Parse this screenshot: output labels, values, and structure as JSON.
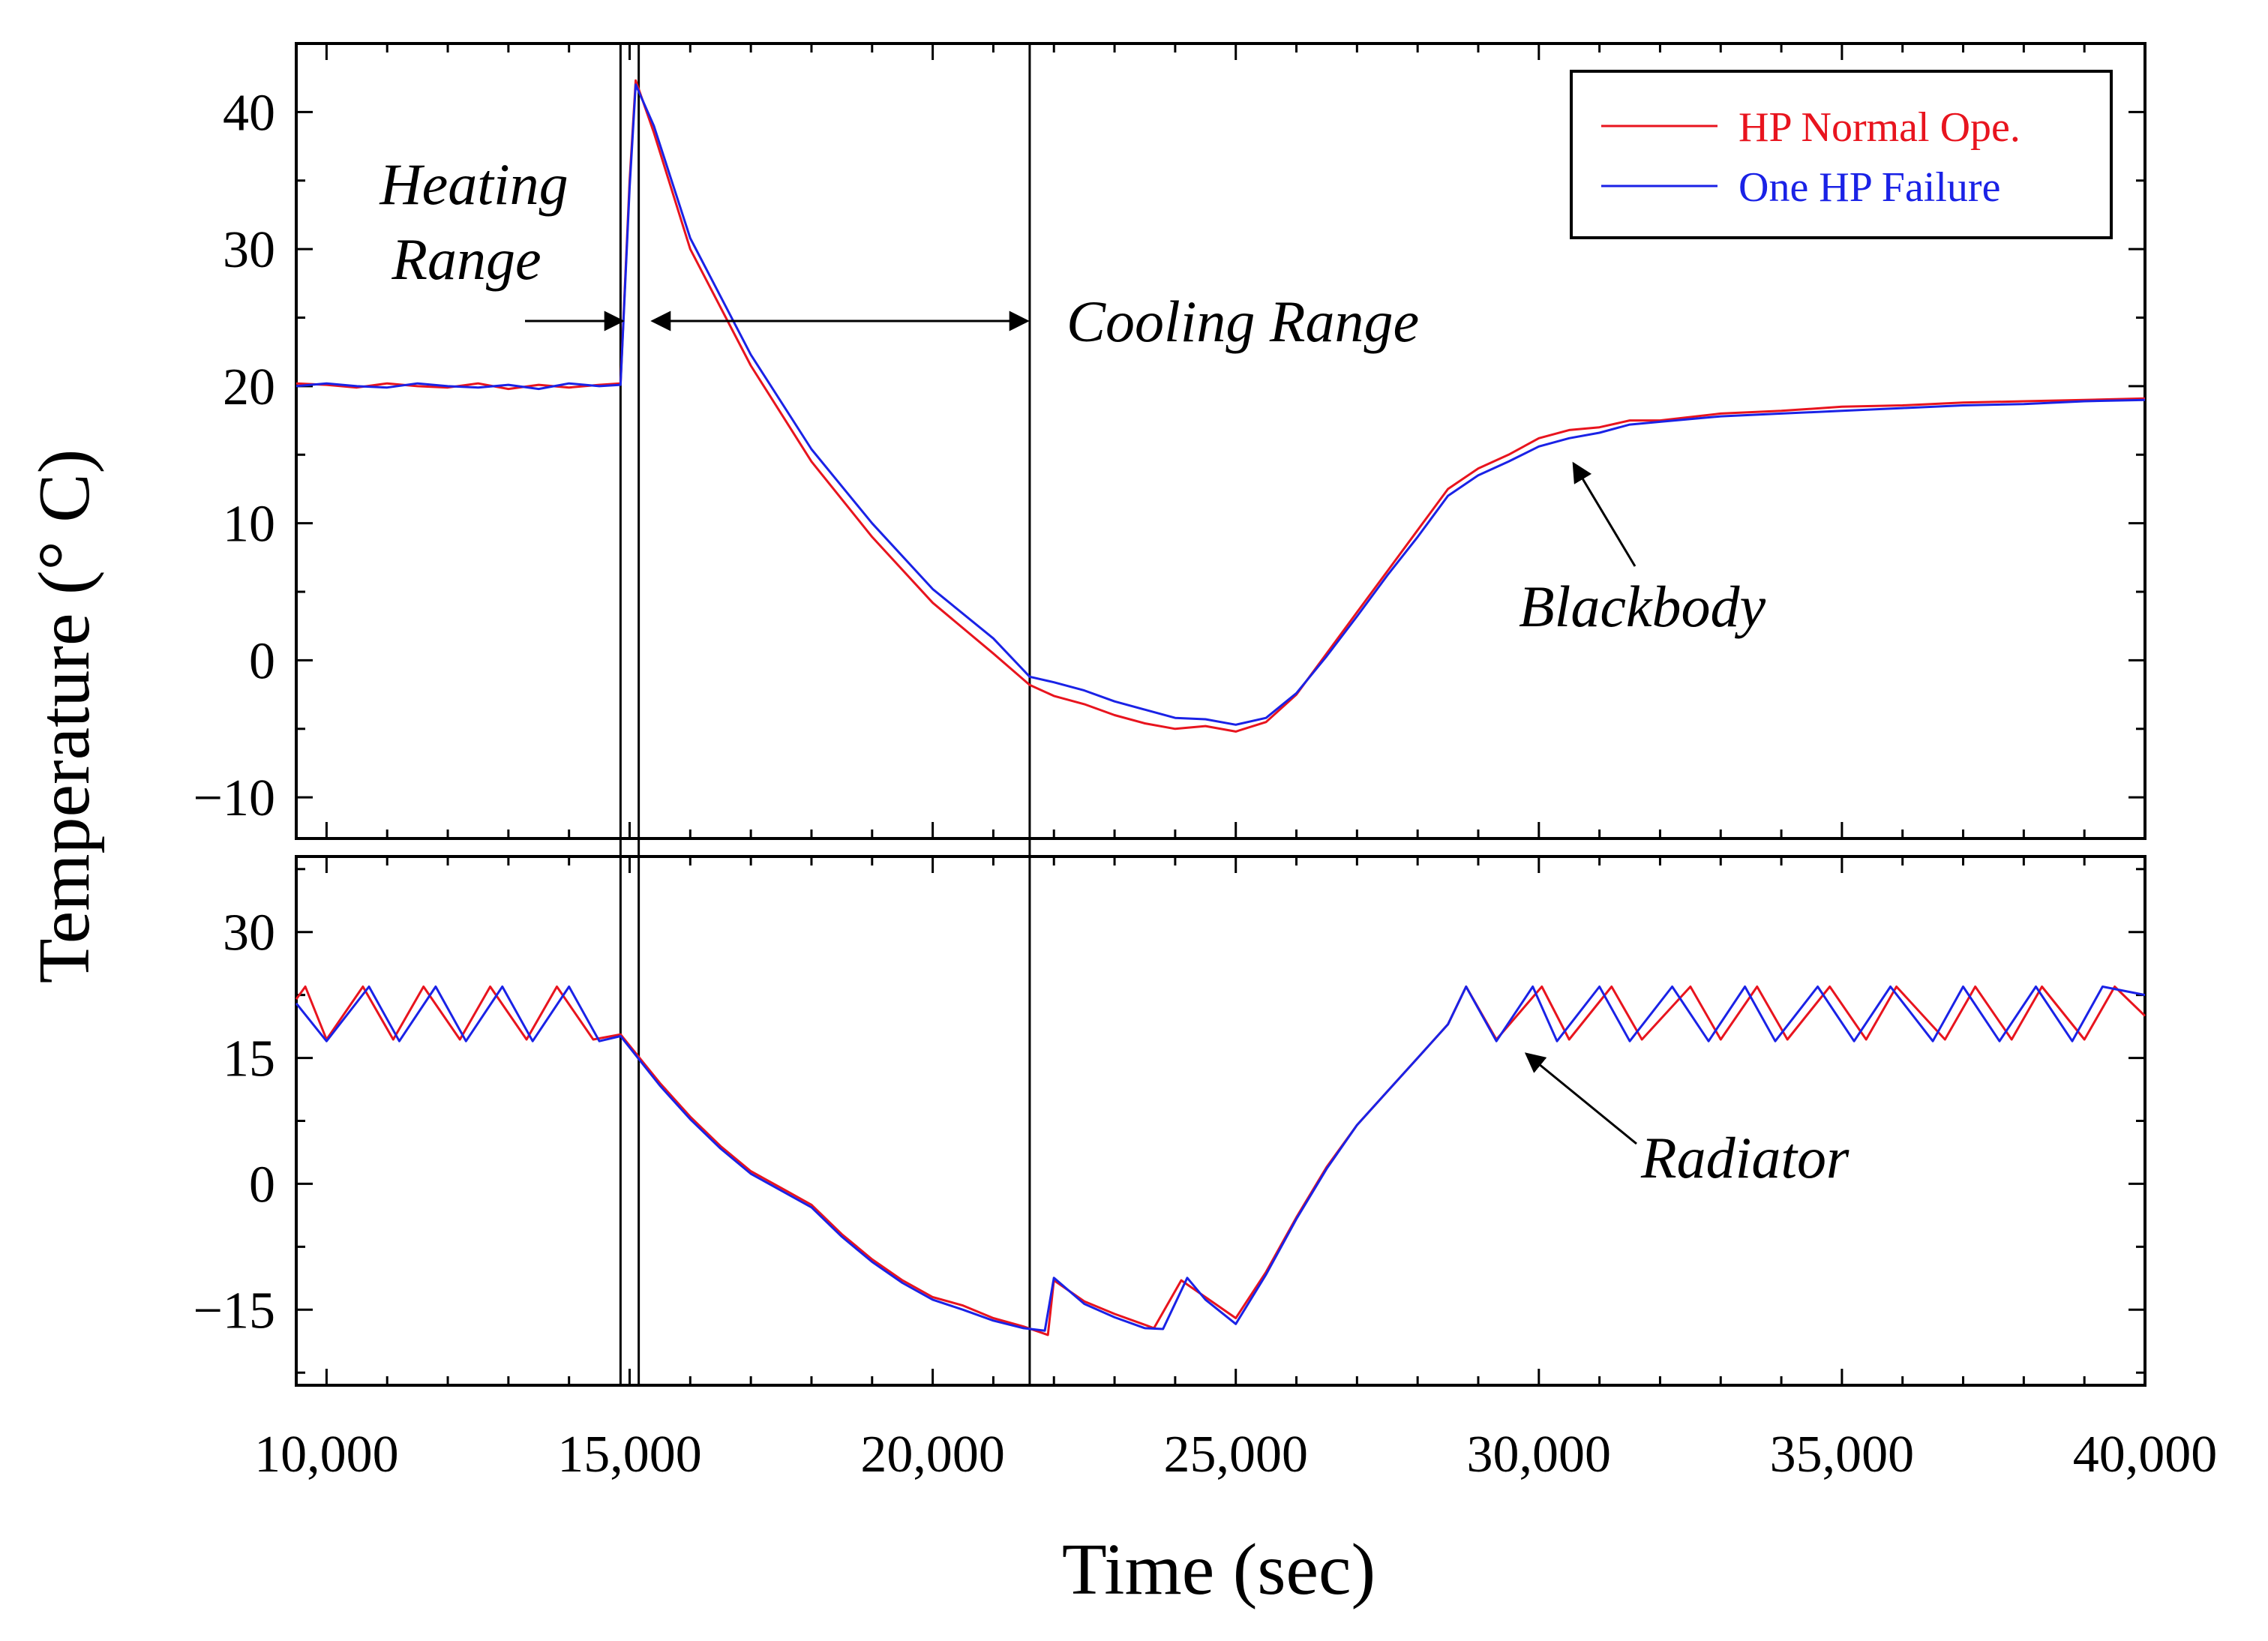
{
  "chart_data": {
    "type": "line",
    "shared_x": {
      "label": "Time (sec)",
      "range": [
        9500,
        40000
      ],
      "ticks": [
        10000,
        15000,
        20000,
        25000,
        30000,
        35000,
        40000
      ],
      "tick_labels": [
        "10,000",
        "15,000",
        "20,000",
        "25,000",
        "30,000",
        "35,000",
        "40,000"
      ]
    },
    "ylabel": "Temperature (° C)",
    "legend": {
      "placement": "top-right",
      "entries": [
        {
          "name": "HP Normal Ope.",
          "color": "#e8141e"
        },
        {
          "name": "One HP Failure",
          "color": "#1a22e6"
        }
      ]
    },
    "marker_lines": [
      14850,
      15150,
      21600
    ],
    "annotations": {
      "heating_range": [
        "Heating",
        "Range"
      ],
      "cooling_range": "Cooling Range",
      "blackbody": "Blackbody",
      "radiator": "Radiator"
    },
    "panels": [
      {
        "name": "Blackbody",
        "ylim": [
          -13,
          45
        ],
        "yticks": [
          -10,
          0,
          10,
          20,
          30,
          40
        ],
        "ytick_labels": [
          "−10",
          "0",
          "10",
          "20",
          "30",
          "40"
        ],
        "series": [
          {
            "name": "HP Normal Ope.",
            "x": [
              9500,
              10000,
              10500,
              11000,
              11500,
              12000,
              12500,
              13000,
              13500,
              14000,
              14500,
              14850,
              15000,
              15100,
              15400,
              16000,
              17000,
              18000,
              19000,
              20000,
              21000,
              21600,
              22000,
              22500,
              23000,
              23500,
              24000,
              24500,
              25000,
              25500,
              26000,
              26500,
              27000,
              27500,
              28000,
              28500,
              29000,
              29500,
              30000,
              30500,
              31000,
              31500,
              32000,
              33000,
              34000,
              35000,
              36000,
              37000,
              38000,
              39000,
              40000
            ],
            "y": [
              20.2,
              20.1,
              19.9,
              20.2,
              20.0,
              19.9,
              20.2,
              19.8,
              20.1,
              19.9,
              20.1,
              20.2,
              35.0,
              42.3,
              38.5,
              30.0,
              21.5,
              14.5,
              9.0,
              4.2,
              0.5,
              -1.8,
              -2.6,
              -3.2,
              -4.0,
              -4.6,
              -5.0,
              -4.8,
              -5.2,
              -4.5,
              -2.5,
              0.5,
              3.5,
              6.5,
              9.5,
              12.5,
              14.0,
              15.0,
              16.2,
              16.8,
              17.0,
              17.5,
              17.5,
              18.0,
              18.2,
              18.5,
              18.6,
              18.8,
              18.9,
              19.0,
              19.1
            ]
          },
          {
            "name": "One HP Failure",
            "x": [
              9500,
              10000,
              10500,
              11000,
              11500,
              12000,
              12500,
              13000,
              13500,
              14000,
              14500,
              14850,
              15000,
              15100,
              15400,
              16000,
              17000,
              18000,
              19000,
              20000,
              21000,
              21600,
              22000,
              22500,
              23000,
              23500,
              24000,
              24500,
              25000,
              25500,
              26000,
              26500,
              27000,
              27500,
              28000,
              28500,
              29000,
              29500,
              30000,
              30500,
              31000,
              31500,
              32000,
              33000,
              34000,
              35000,
              36000,
              37000,
              38000,
              39000,
              40000
            ],
            "y": [
              20.0,
              20.2,
              20.0,
              19.9,
              20.2,
              20.0,
              19.9,
              20.1,
              19.8,
              20.2,
              20.0,
              20.1,
              34.5,
              42.0,
              39.0,
              30.8,
              22.3,
              15.4,
              10.0,
              5.2,
              1.6,
              -1.2,
              -1.6,
              -2.2,
              -3.0,
              -3.6,
              -4.2,
              -4.3,
              -4.7,
              -4.2,
              -2.4,
              0.3,
              3.2,
              6.2,
              9.0,
              12.0,
              13.5,
              14.5,
              15.6,
              16.2,
              16.6,
              17.2,
              17.4,
              17.8,
              18.0,
              18.2,
              18.4,
              18.6,
              18.7,
              18.9,
              19.0
            ]
          }
        ]
      },
      {
        "name": "Radiator",
        "ylim": [
          -24,
          39
        ],
        "yticks": [
          -15,
          0,
          15,
          30
        ],
        "ytick_labels": [
          "−15",
          "0",
          "15",
          "30"
        ],
        "series": [
          {
            "name": "HP Normal Ope.",
            "x": [
              9500,
              9650,
              10000,
              10600,
              11100,
              11600,
              12200,
              12700,
              13300,
              13800,
              14400,
              14850,
              15500,
              16000,
              16500,
              17000,
              17500,
              18000,
              18500,
              19000,
              19500,
              20000,
              20500,
              21000,
              21500,
              21900,
              22000,
              22500,
              23000,
              23500,
              23650,
              24100,
              24500,
              25000,
              25500,
              26000,
              26500,
              27000,
              27500,
              28000,
              28500,
              28800,
              29300,
              30050,
              30500,
              31200,
              31700,
              32500,
              33000,
              33600,
              34100,
              34800,
              35400,
              35900,
              36700,
              37200,
              37800,
              38300,
              39000,
              39500,
              40000
            ],
            "y": [
              22.0,
              23.5,
              17.2,
              23.5,
              17.2,
              23.5,
              17.2,
              23.5,
              17.2,
              23.5,
              17.2,
              17.8,
              12.0,
              8.0,
              4.5,
              1.5,
              -0.5,
              -2.5,
              -6.0,
              -9.0,
              -11.5,
              -13.5,
              -14.5,
              -16.0,
              -17.0,
              -18.0,
              -11.5,
              -14.0,
              -15.5,
              -16.8,
              -17.2,
              -11.5,
              -13.5,
              -16.0,
              -10.5,
              -4.0,
              2.0,
              7.0,
              11.0,
              15.0,
              19.0,
              23.5,
              17.2,
              23.5,
              17.2,
              23.5,
              17.2,
              23.5,
              17.2,
              23.5,
              17.2,
              23.5,
              17.2,
              23.5,
              17.2,
              23.5,
              17.2,
              23.5,
              17.2,
              23.5,
              20.0
            ]
          },
          {
            "name": "One HP Failure",
            "x": [
              9500,
              10000,
              10700,
              11200,
              11800,
              12300,
              12900,
              13400,
              14000,
              14500,
              14850,
              15500,
              16000,
              16500,
              17000,
              17500,
              18000,
              18500,
              19000,
              19500,
              20000,
              20500,
              21000,
              21500,
              21850,
              22000,
              22500,
              23000,
              23500,
              23800,
              24200,
              24500,
              25000,
              25500,
              26000,
              26500,
              27000,
              27500,
              28000,
              28500,
              28800,
              29300,
              29900,
              30300,
              31000,
              31500,
              32200,
              32800,
              33400,
              33900,
              34600,
              35200,
              35800,
              36500,
              37000,
              37600,
              38200,
              38800,
              39300,
              40000
            ],
            "y": [
              21.5,
              17.0,
              23.5,
              17.0,
              23.5,
              17.0,
              23.5,
              17.0,
              23.5,
              17.0,
              17.6,
              11.7,
              7.7,
              4.2,
              1.2,
              -0.8,
              -2.8,
              -6.3,
              -9.3,
              -11.8,
              -13.8,
              -15.0,
              -16.3,
              -17.2,
              -17.5,
              -11.2,
              -14.3,
              -15.9,
              -17.2,
              -17.3,
              -11.2,
              -13.8,
              -16.7,
              -10.8,
              -4.2,
              1.8,
              7.0,
              11.0,
              15.0,
              19.0,
              23.5,
              17.0,
              23.5,
              17.0,
              23.5,
              17.0,
              23.5,
              17.0,
              23.5,
              17.0,
              23.5,
              17.0,
              23.5,
              17.0,
              23.5,
              17.0,
              23.5,
              17.0,
              23.5,
              22.5
            ]
          }
        ]
      }
    ]
  }
}
